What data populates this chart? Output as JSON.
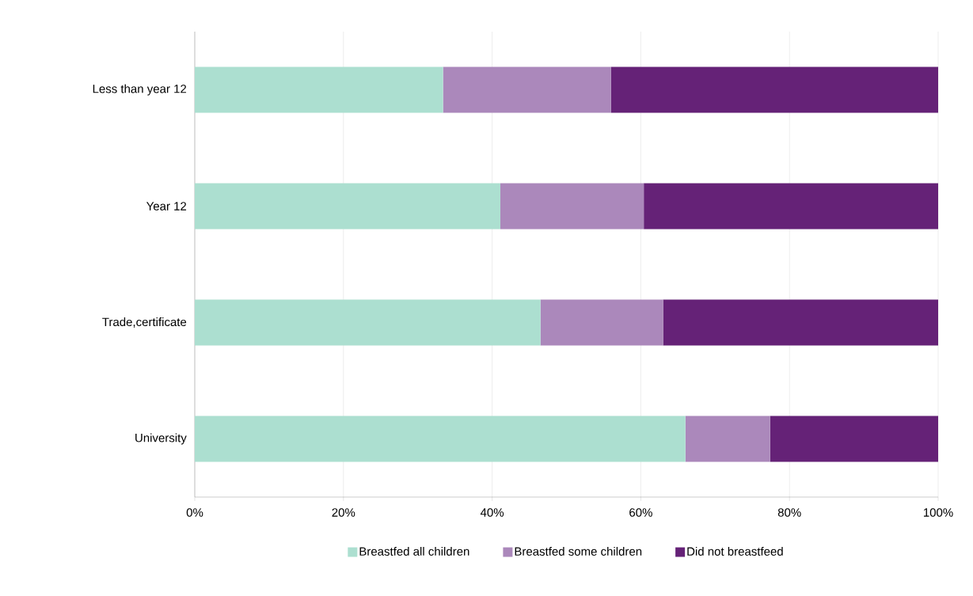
{
  "chart_data": {
    "type": "bar",
    "orientation": "horizontal",
    "stacked": true,
    "categories": [
      "Less than year 12",
      "Year 12",
      "Trade,certificate",
      "University"
    ],
    "series": [
      {
        "name": "Breastfed all children",
        "color": "#acdfd0",
        "values": [
          33.4,
          41.1,
          46.5,
          66.0
        ]
      },
      {
        "name": "Breastfed some children",
        "color": "#ab88bb",
        "values": [
          22.6,
          19.3,
          16.5,
          11.4
        ]
      },
      {
        "name": "Did not breastfeed",
        "color": "#652277",
        "values": [
          44.0,
          39.6,
          37.0,
          22.6
        ]
      }
    ],
    "xlim": [
      0,
      100
    ],
    "xticks": [
      {
        "value": 0,
        "label": "0%"
      },
      {
        "value": 20,
        "label": "20%"
      },
      {
        "value": 40,
        "label": "40%"
      },
      {
        "value": 60,
        "label": "60%"
      },
      {
        "value": 80,
        "label": "80%"
      },
      {
        "value": 100,
        "label": "100%"
      }
    ],
    "grid": "x",
    "legend": "bottom"
  }
}
